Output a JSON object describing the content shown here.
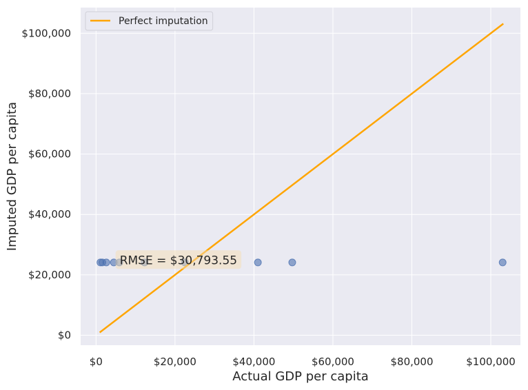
{
  "chart_data": {
    "type": "scatter",
    "xlabel": "Actual GDP per capita",
    "ylabel": "Imputed GDP per capita",
    "xlim": [
      -3900,
      107500
    ],
    "ylim": [
      -3300,
      108500
    ],
    "x_ticks": [
      0,
      20000,
      40000,
      60000,
      80000,
      100000
    ],
    "x_tick_labels": [
      "$0",
      "$20,000",
      "$40,000",
      "$60,000",
      "$80,000",
      "$100,000"
    ],
    "y_ticks": [
      0,
      20000,
      40000,
      60000,
      80000,
      100000
    ],
    "y_tick_labels": [
      "$0",
      "$20,000",
      "$40,000",
      "$60,000",
      "$80,000",
      "$100,000"
    ],
    "grid": true,
    "legend_position": "top-left",
    "series": [
      {
        "name": "",
        "kind": "points",
        "color": "#4C72B0",
        "points": [
          {
            "x": 1100,
            "y": 24100
          },
          {
            "x": 1600,
            "y": 24100
          },
          {
            "x": 2600,
            "y": 24100
          },
          {
            "x": 4500,
            "y": 24100
          },
          {
            "x": 5900,
            "y": 24100
          },
          {
            "x": 12300,
            "y": 24100
          },
          {
            "x": 22500,
            "y": 24100
          },
          {
            "x": 41000,
            "y": 24100
          },
          {
            "x": 49700,
            "y": 24100
          },
          {
            "x": 103000,
            "y": 24100
          }
        ]
      },
      {
        "name": "Perfect imputation",
        "kind": "line",
        "color": "#FFA500",
        "points": [
          {
            "x": 1100,
            "y": 1100
          },
          {
            "x": 103000,
            "y": 103000
          }
        ]
      }
    ],
    "annotation": {
      "text": "RMSE = $30,793.55",
      "x": 6000,
      "y": 24700
    }
  }
}
